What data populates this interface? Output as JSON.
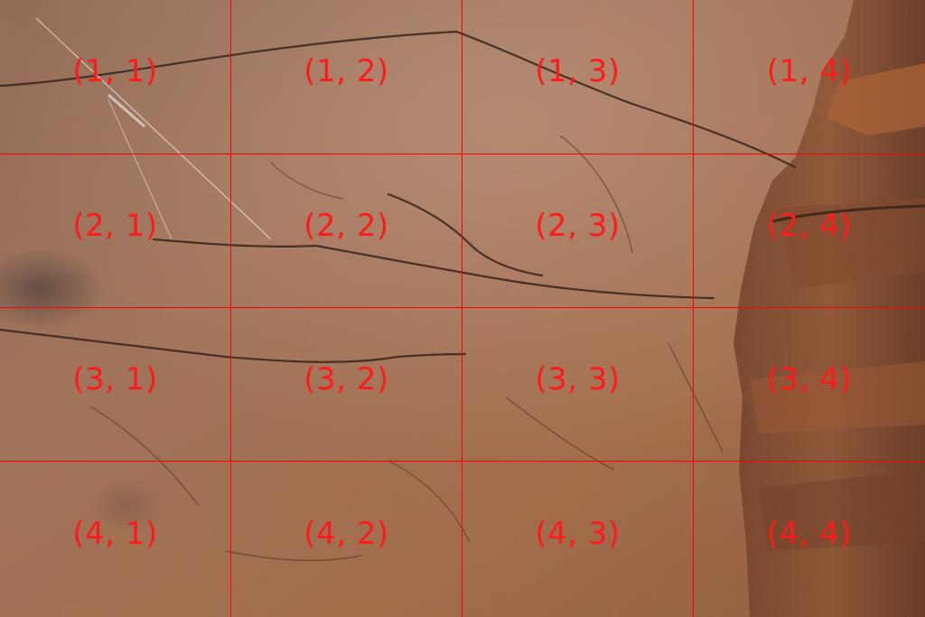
{
  "grid": {
    "line_color": "#ff0000",
    "label_color": "#ff1a1a",
    "rows": [
      [
        "(1, 1)",
        "(1, 2)",
        "(1, 3)",
        "(1, 4)"
      ],
      [
        "(2, 1)",
        "(2, 2)",
        "(2, 3)",
        "(2, 4)"
      ],
      [
        "(3, 1)",
        "(3, 2)",
        "(3, 3)",
        "(3, 4)"
      ],
      [
        "(4, 1)",
        "(4, 2)",
        "(4, 3)",
        "(4, 4)"
      ]
    ]
  },
  "photo": {
    "subject": "brown cave rock wall with cracks",
    "base_color": "#9a6a4c",
    "shadow_color": "#5a3526",
    "highlight_color": "#c99a78"
  }
}
